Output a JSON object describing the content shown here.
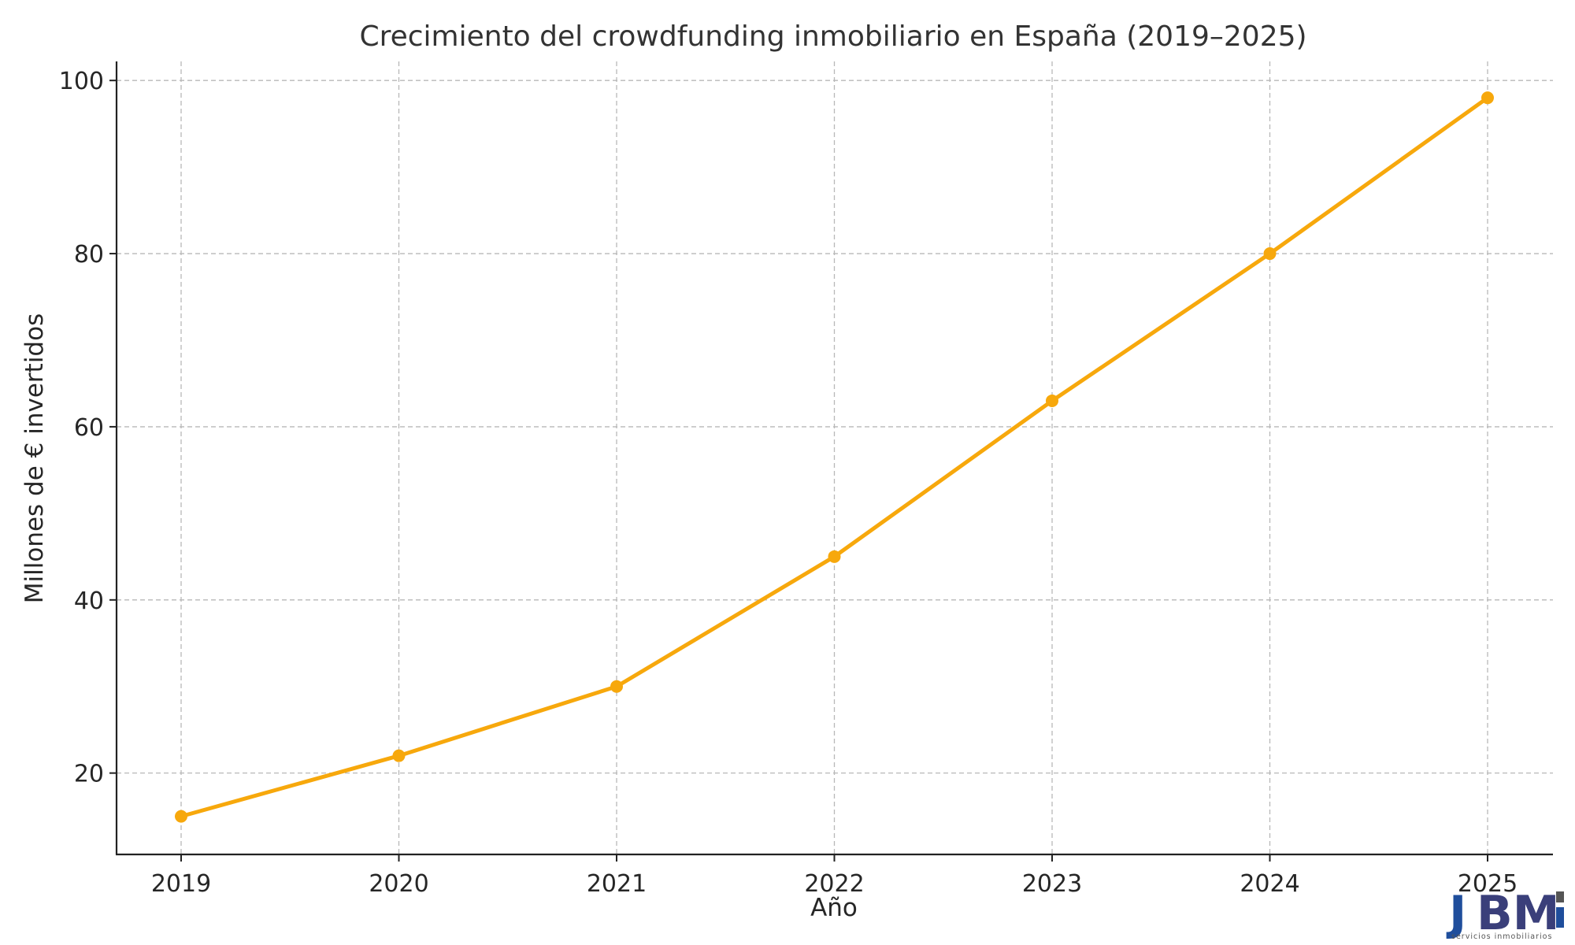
{
  "chart_data": {
    "type": "line",
    "title": "Crecimiento del crowdfunding inmobiliario en España (2019–2025)",
    "xlabel": "Año",
    "ylabel": "Millones de € invertidos",
    "x": [
      "2019",
      "2020",
      "2021",
      "2022",
      "2023",
      "2024",
      "2025"
    ],
    "series": [
      {
        "values": [
          15,
          22,
          30,
          45,
          63,
          80,
          98
        ],
        "color": "#f7a80c"
      }
    ],
    "y_ticks": [
      20,
      40,
      60,
      80,
      100
    ],
    "ylim": [
      10.6,
      102.2
    ],
    "grid": true,
    "markers": true
  },
  "logo": {
    "text_j": "J",
    "text_bm": "BM",
    "subtitle": "servicios inmobiliarios",
    "color_j": "#1f4e9c",
    "color_b": "#5a5a5a",
    "color_m": "#2b2f7a"
  }
}
